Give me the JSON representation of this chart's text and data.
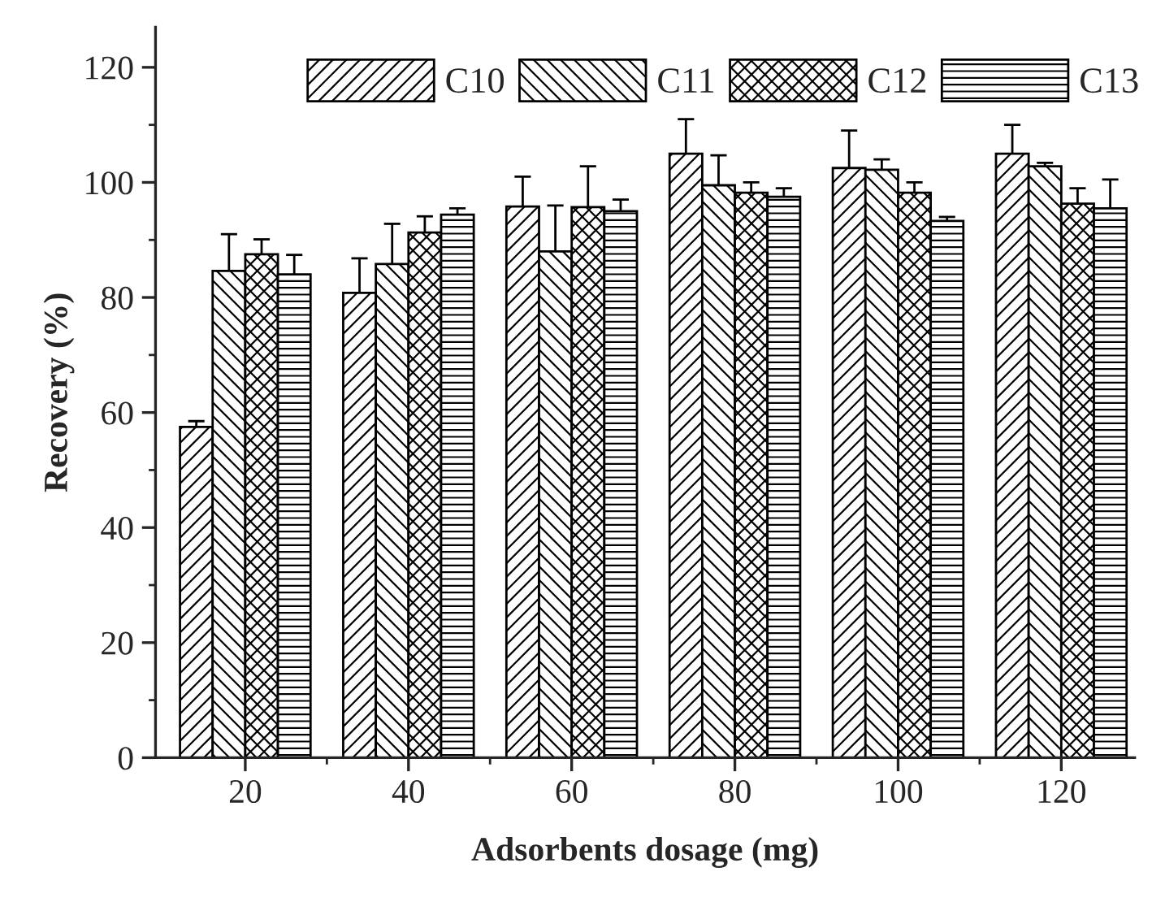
{
  "chart_data": {
    "type": "bar",
    "xlabel": "Adsorbents dosage (mg)",
    "ylabel": "Recovery (%)",
    "categories": [
      "20",
      "40",
      "60",
      "80",
      "100",
      "120"
    ],
    "series": [
      {
        "name": "C10",
        "color": "#000000",
        "values": [
          57.5,
          80.8,
          95.8,
          105,
          102.5,
          105
        ],
        "errors": [
          [
            57.5,
            58.5
          ],
          [
            80.8,
            86.8
          ],
          [
            95.8,
            101
          ],
          [
            105,
            111
          ],
          [
            102.5,
            109
          ],
          [
            105,
            110
          ]
        ]
      },
      {
        "name": "C11",
        "color": "#000000",
        "values": [
          84.6,
          85.8,
          88,
          99.5,
          102.2,
          102.8
        ],
        "errors": [
          [
            84.6,
            91
          ],
          [
            85.8,
            92.8
          ],
          [
            88,
            96
          ],
          [
            99.5,
            104.7
          ],
          [
            102.2,
            104
          ],
          [
            102.8,
            103.4
          ]
        ]
      },
      {
        "name": "C12",
        "color": "#000000",
        "values": [
          87.5,
          91.3,
          95.7,
          98.2,
          98.2,
          96.3
        ],
        "errors": [
          [
            87.5,
            90.1
          ],
          [
            91.3,
            94.1
          ],
          [
            95.7,
            102.8
          ],
          [
            98.2,
            100
          ],
          [
            98.2,
            100
          ],
          [
            96.3,
            99
          ]
        ]
      },
      {
        "name": "C13",
        "color": "#000000",
        "values": [
          84,
          94.4,
          95,
          97.5,
          93.3,
          95.5
        ],
        "errors": [
          [
            84,
            87.4
          ],
          [
            94.4,
            95.5
          ],
          [
            95,
            97
          ],
          [
            97.5,
            99
          ],
          [
            93.3,
            94
          ],
          [
            95.5,
            100.5
          ]
        ]
      }
    ],
    "ylim": [
      0,
      127
    ],
    "yticks": [
      0,
      20,
      40,
      60,
      80,
      100,
      120
    ],
    "grid": false,
    "legend": "top"
  }
}
